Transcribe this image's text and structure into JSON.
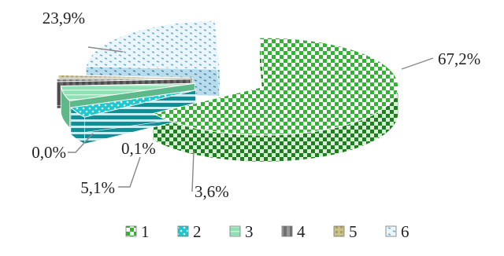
{
  "chart_data": {
    "type": "pie",
    "style": "3d-exploded",
    "categories": [
      "1",
      "2",
      "3",
      "4",
      "5",
      "6"
    ],
    "values": [
      67.2,
      3.6,
      5.1,
      0.0,
      0.1,
      23.9
    ],
    "data_labels": [
      "67,2%",
      "3,6%",
      "5,1%",
      "0,0%",
      "0,1%",
      "23,9%"
    ],
    "legend_position": "bottom",
    "series_colors": [
      "#2fb52f",
      "#19c9cf",
      "#8fe0b4",
      "#9a9a9a",
      "#a8a060",
      "#8fd0e6"
    ]
  }
}
